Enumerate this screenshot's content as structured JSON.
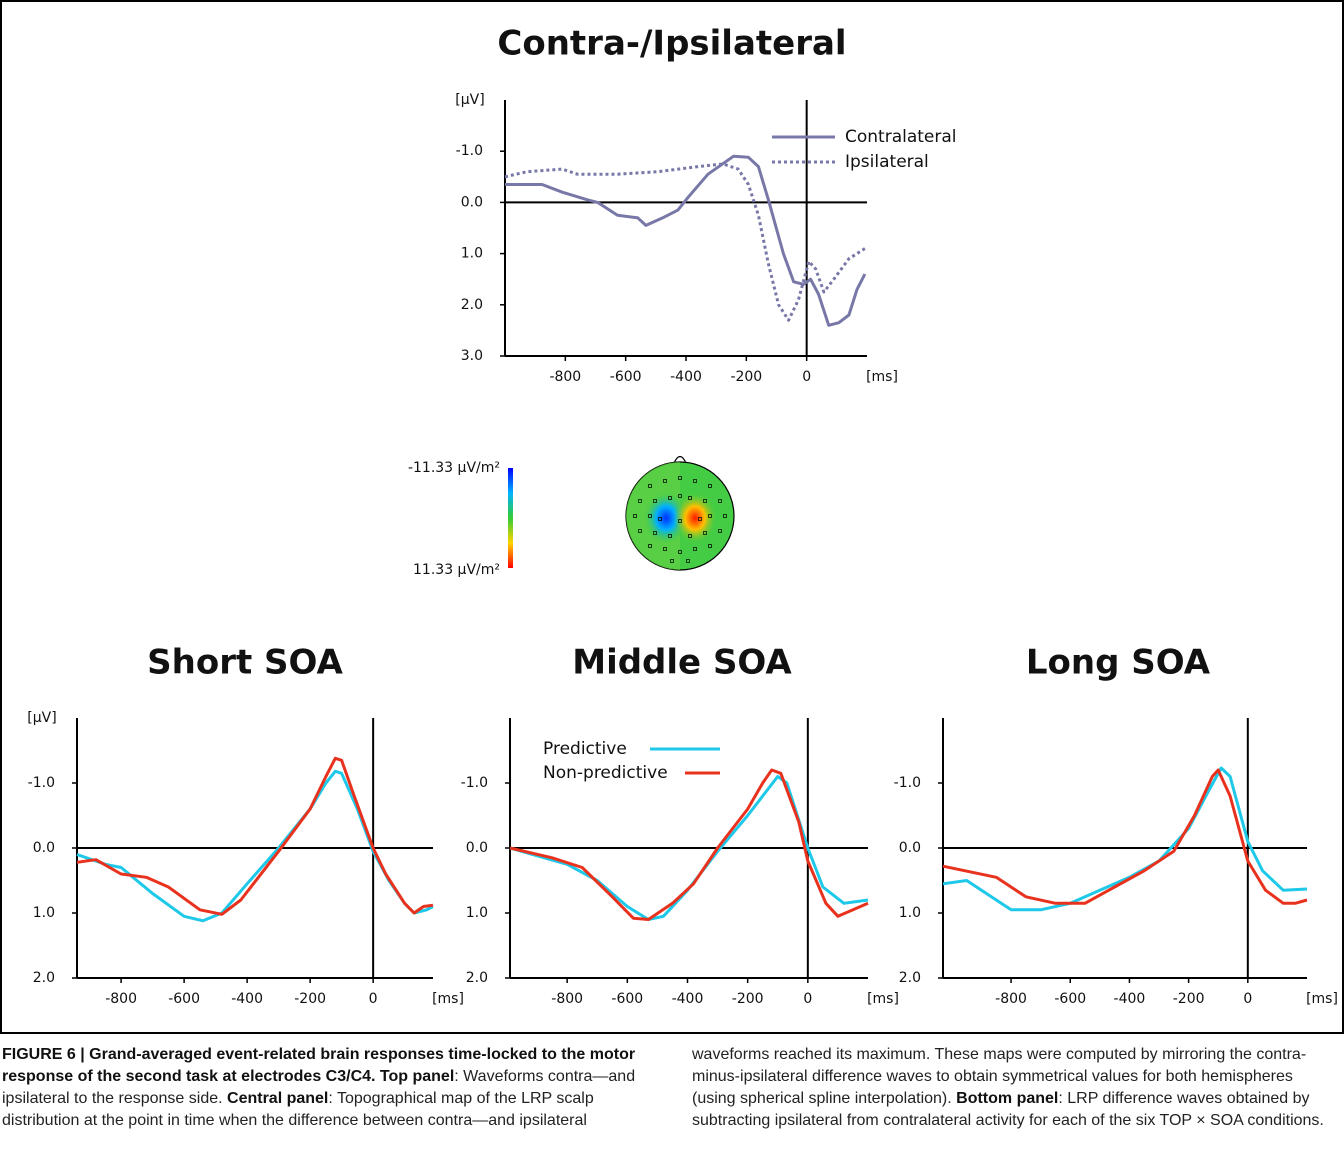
{
  "chart_data": [
    {
      "type": "line",
      "title": "Contra-/Ipsilateral",
      "y_label": "[µV]",
      "x_label": "[ms]",
      "xlim": [
        -1000,
        200
      ],
      "xticks": [
        -800,
        -600,
        -400,
        -200,
        0
      ],
      "ylim": [
        -2,
        3
      ],
      "y_reversed": true,
      "yticks": [
        {
          "value": -1,
          "label": "-1.0"
        },
        {
          "value": 0,
          "label": "0.0"
        },
        {
          "value": 1,
          "label": "1.0"
        },
        {
          "value": 2,
          "label": "2.0"
        },
        {
          "value": 3,
          "label": "3.0"
        }
      ],
      "legend": "upper-right",
      "x": [
        -1000,
        -877,
        -810,
        -727,
        -693,
        -627,
        -560,
        -533,
        -477,
        -427,
        -393,
        -327,
        -243,
        -193,
        -160,
        -127,
        -77,
        -43,
        -10,
        13,
        40,
        73,
        107,
        140,
        167,
        193
      ],
      "series": [
        {
          "name": "Contralateral",
          "color": "#7878a8",
          "dash": "solid",
          "values": [
            -0.35,
            -0.35,
            -0.2,
            -0.05,
            0,
            0.25,
            0.3,
            0.45,
            0.3,
            0.15,
            -0.1,
            -0.55,
            -0.9,
            -0.88,
            -0.7,
            -0.05,
            1.0,
            1.55,
            1.6,
            1.5,
            1.8,
            2.4,
            2.35,
            2.2,
            1.7,
            1.4
          ]
        },
        {
          "name": "Ipsilateral",
          "color": "#7878a8",
          "dash": "dotted",
          "x": [
            -1000,
            -927,
            -810,
            -760,
            -627,
            -493,
            -360,
            -277,
            -227,
            -193,
            -160,
            -127,
            -93,
            -60,
            -27,
            7,
            30,
            57,
            90,
            140,
            193
          ],
          "values": [
            -0.5,
            -0.6,
            -0.65,
            -0.55,
            -0.55,
            -0.6,
            -0.7,
            -0.75,
            -0.65,
            -0.35,
            0.25,
            1.2,
            2.0,
            2.3,
            1.9,
            1.15,
            1.3,
            1.75,
            1.5,
            1.1,
            0.9
          ]
        }
      ]
    },
    {
      "type": "line",
      "title": "Short SOA",
      "y_label": "[µV]",
      "x_label": "[ms]",
      "xlim": [
        -940,
        190
      ],
      "xticks": [
        -800,
        -600,
        -400,
        -200,
        0
      ],
      "ylim": [
        -2,
        2
      ],
      "y_reversed": true,
      "yticks": [
        {
          "value": -1,
          "label": "-1.0"
        },
        {
          "value": 0,
          "label": "0.0"
        },
        {
          "value": 1,
          "label": "1.0"
        },
        {
          "value": 2,
          "label": "2.0"
        }
      ],
      "x": [
        -940,
        -850,
        -800,
        -700,
        -600,
        -540,
        -480,
        -400,
        -300,
        -200,
        -150,
        -120,
        -100,
        -50,
        0,
        50,
        100,
        130,
        170,
        190
      ],
      "series": [
        {
          "name": "Predictive",
          "color": "#1ec8e8",
          "values": [
            0.1,
            0.25,
            0.3,
            0.7,
            1.05,
            1.12,
            1.0,
            0.55,
            0.0,
            -0.6,
            -1.0,
            -1.18,
            -1.15,
            -0.6,
            0.05,
            0.5,
            0.85,
            1.0,
            0.95,
            0.9
          ]
        },
        {
          "name": "Non-predictive",
          "color": "#e8321e",
          "x": [
            -940,
            -880,
            -800,
            -720,
            -650,
            -550,
            -480,
            -420,
            -300,
            -200,
            -150,
            -120,
            -100,
            -60,
            0,
            40,
            100,
            130,
            160,
            190
          ],
          "values": [
            0.22,
            0.18,
            0.4,
            0.45,
            0.6,
            0.95,
            1.02,
            0.8,
            0.05,
            -0.6,
            -1.1,
            -1.38,
            -1.35,
            -0.8,
            0.0,
            0.4,
            0.85,
            1.0,
            0.9,
            0.88
          ]
        }
      ]
    },
    {
      "type": "line",
      "title": "Middle SOA",
      "x_label": "[ms]",
      "xlim": [
        -990,
        200
      ],
      "xticks": [
        -800,
        -600,
        -400,
        -200,
        0
      ],
      "ylim": [
        -2,
        2
      ],
      "y_reversed": true,
      "yticks": [
        {
          "value": -1,
          "label": "-1.0"
        },
        {
          "value": 0,
          "label": "0.0"
        },
        {
          "value": 1,
          "label": "1.0"
        },
        {
          "value": 2,
          "label": "2.0"
        }
      ],
      "legend": "upper-left",
      "x": [
        -990,
        -800,
        -700,
        -600,
        -530,
        -480,
        -400,
        -300,
        -200,
        -150,
        -100,
        -70,
        0,
        50,
        120,
        200
      ],
      "series": [
        {
          "name": "Predictive",
          "color": "#1ec8e8",
          "values": [
            0.0,
            0.25,
            0.5,
            0.9,
            1.1,
            1.05,
            0.65,
            0.05,
            -0.5,
            -0.8,
            -1.1,
            -1.0,
            0.0,
            0.6,
            0.85,
            0.8
          ]
        },
        {
          "name": "Non-predictive",
          "color": "#e8321e",
          "x": [
            -990,
            -850,
            -750,
            -650,
            -580,
            -530,
            -450,
            -380,
            -300,
            -200,
            -150,
            -120,
            -90,
            -30,
            0,
            60,
            100,
            150,
            200
          ],
          "values": [
            0.0,
            0.15,
            0.3,
            0.75,
            1.08,
            1.1,
            0.85,
            0.55,
            0.0,
            -0.6,
            -1.0,
            -1.2,
            -1.15,
            -0.4,
            0.2,
            0.85,
            1.05,
            0.95,
            0.85
          ]
        }
      ]
    },
    {
      "type": "line",
      "title": "Long SOA",
      "x_label": "[ms]",
      "xlim": [
        -1030,
        200
      ],
      "xticks": [
        -800,
        -600,
        -400,
        -200,
        0
      ],
      "ylim": [
        -2,
        2
      ],
      "y_reversed": true,
      "yticks": [
        {
          "value": -1,
          "label": "-1.0"
        },
        {
          "value": 0,
          "label": "0.0"
        },
        {
          "value": 1,
          "label": "1.0"
        },
        {
          "value": 2,
          "label": "2.0"
        }
      ],
      "x": [
        -1030,
        -950,
        -800,
        -700,
        -600,
        -500,
        -400,
        -300,
        -200,
        -130,
        -90,
        -60,
        0,
        50,
        120,
        200
      ],
      "series": [
        {
          "name": "Predictive",
          "color": "#1ec8e8",
          "values": [
            0.55,
            0.5,
            0.95,
            0.95,
            0.85,
            0.65,
            0.45,
            0.2,
            -0.3,
            -0.9,
            -1.23,
            -1.1,
            -0.1,
            0.35,
            0.65,
            0.63
          ]
        },
        {
          "name": "Non-predictive",
          "color": "#e8321e",
          "x": [
            -1030,
            -850,
            -750,
            -650,
            -550,
            -450,
            -350,
            -250,
            -180,
            -120,
            -100,
            -60,
            0,
            60,
            120,
            160,
            200
          ],
          "values": [
            0.28,
            0.45,
            0.75,
            0.85,
            0.85,
            0.6,
            0.35,
            0.05,
            -0.5,
            -1.1,
            -1.2,
            -0.8,
            0.2,
            0.65,
            0.85,
            0.85,
            0.8
          ]
        }
      ]
    }
  ],
  "topomap": {
    "colorbar_min": "-11.33 µV/m²",
    "colorbar_max": "11.33 µV/m²"
  },
  "caption": {
    "segments": [
      {
        "text": "FIGURE 6 | Grand-averaged event-related brain responses time-locked to the motor response of the second task at electrodes C3/C4. ",
        "bold": true
      },
      {
        "text": "Top panel",
        "bold": true
      },
      {
        "text": ": Waveforms contra—and ipsilateral to the response side. ",
        "bold": false
      },
      {
        "text": "Central panel",
        "bold": true
      },
      {
        "text": ": Topographical map of the LRP scalp distribution at the point in time when the difference between contra—and ipsilateral waveforms reached its maximum. These maps were computed by mirroring the contra-minus-ipsilateral difference waves to obtain symmetrical values for both hemispheres (using spherical spline interpolation). ",
        "bold": false
      },
      {
        "text": "Bottom panel",
        "bold": true
      },
      {
        "text": ": LRP difference waves obtained by subtracting ipsilateral from contralateral activity for each of the six TOP × SOA conditions.",
        "bold": false
      }
    ]
  }
}
